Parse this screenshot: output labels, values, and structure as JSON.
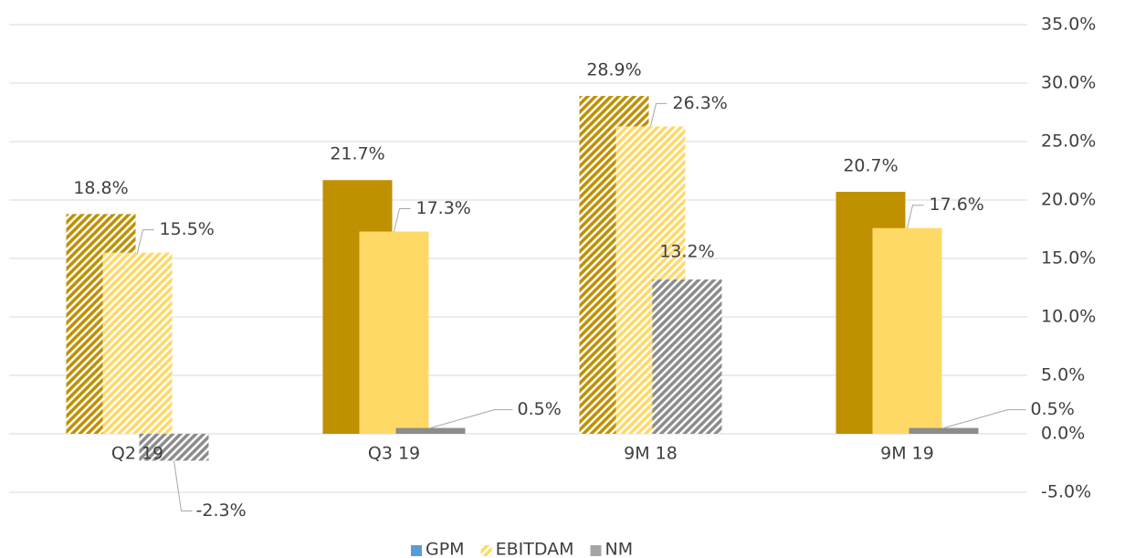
{
  "chart_data": {
    "type": "bar",
    "categories": [
      "Q2 19",
      "Q3 19",
      "9M 18",
      "9M 19"
    ],
    "hatched": [
      true,
      false,
      true,
      false
    ],
    "series": [
      {
        "name": "GPM",
        "color": "#bf9000",
        "legend_color": "#5b9bd5",
        "values": [
          18.8,
          21.7,
          28.9,
          20.7
        ],
        "value_labels": [
          "18.8%",
          "21.7%",
          "28.9%",
          "20.7%"
        ]
      },
      {
        "name": "EBITDAM",
        "color": "#ffd966",
        "legend_color": "#ffd966",
        "values": [
          15.5,
          17.3,
          26.3,
          17.6
        ],
        "value_labels": [
          "15.5%",
          "17.3%",
          "26.3%",
          "17.6%"
        ]
      },
      {
        "name": "NM",
        "color": "#8c8c8c",
        "legend_color": "#a5a5a5",
        "values": [
          -2.3,
          0.5,
          13.2,
          0.5
        ],
        "value_labels": [
          "-2.3%",
          "0.5%",
          "13.2%",
          "0.5%"
        ]
      }
    ],
    "ylim": [
      -5,
      35
    ],
    "yticks": [
      {
        "value": -5,
        "label": "-5.0%"
      },
      {
        "value": 0,
        "label": "0.0%"
      },
      {
        "value": 5,
        "label": "5.0%"
      },
      {
        "value": 10,
        "label": "10.0%"
      },
      {
        "value": 15,
        "label": "15.0%"
      },
      {
        "value": 20,
        "label": "20.0%"
      },
      {
        "value": 25,
        "label": "25.0%"
      },
      {
        "value": 30,
        "label": "30.0%"
      },
      {
        "value": 35,
        "label": "35.0%"
      }
    ],
    "grid": true,
    "legend": "bottom"
  }
}
